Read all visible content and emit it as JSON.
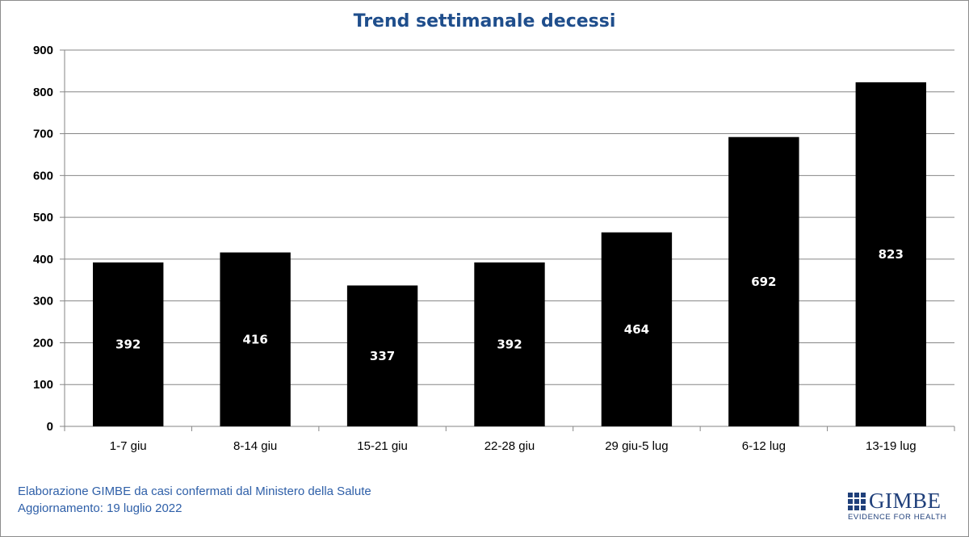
{
  "chart_data": {
    "type": "bar",
    "title": "Trend settimanale decessi",
    "categories": [
      "1-7 giu",
      "8-14 giu",
      "15-21 giu",
      "22-28 giu",
      "29 giu-5 lug",
      "6-12 lug",
      "13-19 lug"
    ],
    "values": [
      392,
      416,
      337,
      392,
      464,
      692,
      823
    ],
    "ylim": [
      0,
      900
    ],
    "yticks": [
      0,
      100,
      200,
      300,
      400,
      500,
      600,
      700,
      800,
      900
    ],
    "grid": true,
    "bar_color": "#000000",
    "data_labels": true
  },
  "footer": {
    "line1": "Elaborazione GIMBE da casi confermati dal Ministero della Salute",
    "line2": "Aggiornamento: 19 luglio 2022"
  },
  "logo": {
    "name": "GIMBE",
    "tagline": "EVIDENCE FOR HEALTH"
  },
  "colors": {
    "title": "#1f4e8c",
    "footer": "#2e5fa8",
    "logo": "#1f3f7a"
  }
}
